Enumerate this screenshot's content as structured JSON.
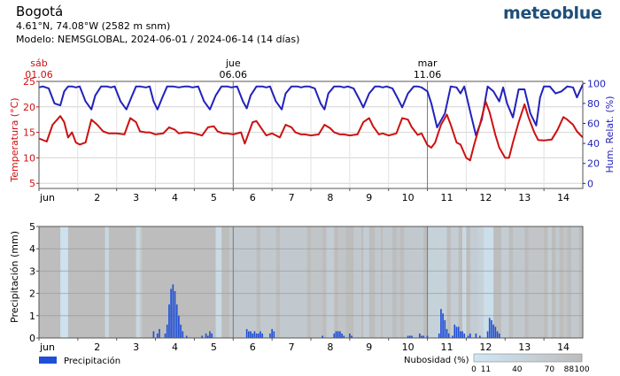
{
  "header": {
    "location": "Bogotá",
    "coordinates": "4.61°N, 74.08°W (2582 m snm)",
    "model": "Modelo: NEMSGLOBAL, 2024-06-01 / 2024-06-14 (14 días)",
    "brand": "meteoblue"
  },
  "colors": {
    "temperature": "#cc1111",
    "humidity": "#2222bb",
    "precipitation": "#1f4fd6",
    "cloud_clear": "#cfe6f5",
    "cloud_overcast": "#bdbdbd"
  },
  "chart_data": [
    {
      "type": "line",
      "day_markers": [
        {
          "day": 1,
          "weekday": "sáb",
          "date": "01.06"
        },
        {
          "day": 6,
          "weekday": "jue",
          "date": "06.06"
        },
        {
          "day": 11,
          "weekday": "mar",
          "date": "11.06"
        }
      ],
      "x_tick_labels": [
        "jun",
        "2",
        "3",
        "4",
        "5",
        "6",
        "7",
        "8",
        "9",
        "10",
        "11",
        "12",
        "13",
        "14"
      ],
      "xlim": [
        1,
        15
      ],
      "y_left": {
        "label": "Temperatura (°C)",
        "ticks": [
          "5",
          "10",
          "15",
          "20",
          "25"
        ],
        "lim": [
          4,
          25
        ]
      },
      "y_right": {
        "label": "Hum. Relat. (%)",
        "ticks": [
          "0",
          "20",
          "40",
          "60",
          "80",
          "100"
        ],
        "lim": [
          -5,
          102
        ]
      },
      "grid": true,
      "series": [
        {
          "axis": "left",
          "x": [
            1.0,
            1.2,
            1.35,
            1.55,
            1.65,
            1.75,
            1.85,
            1.95,
            2.05,
            2.2,
            2.35,
            2.5,
            2.65,
            2.8,
            3.0,
            3.2,
            3.35,
            3.5,
            3.6,
            3.75,
            3.85,
            4.0,
            4.2,
            4.35,
            4.5,
            4.6,
            4.75,
            4.85,
            5.0,
            5.2,
            5.35,
            5.5,
            5.6,
            5.75,
            5.85,
            6.0,
            6.2,
            6.3,
            6.5,
            6.6,
            6.75,
            6.85,
            7.0,
            7.2,
            7.35,
            7.5,
            7.6,
            7.75,
            7.85,
            8.0,
            8.2,
            8.35,
            8.5,
            8.6,
            8.75,
            8.85,
            9.0,
            9.2,
            9.35,
            9.5,
            9.6,
            9.75,
            9.85,
            10.0,
            10.2,
            10.35,
            10.5,
            10.6,
            10.75,
            10.85,
            11.0,
            11.1,
            11.2,
            11.35,
            11.5,
            11.6,
            11.75,
            11.85,
            12.0,
            12.1,
            12.2,
            12.35,
            12.5,
            12.6,
            12.75,
            12.85,
            13.0,
            13.1,
            13.2,
            13.35,
            13.5,
            13.6,
            13.75,
            13.85,
            14.0,
            14.2,
            14.35,
            14.5,
            14.6,
            14.75,
            14.85,
            15.0
          ],
          "values": [
            13.8,
            13.2,
            16.5,
            18.2,
            17.0,
            14.0,
            15.0,
            13.0,
            12.6,
            13.0,
            17.5,
            16.5,
            15.2,
            14.8,
            14.8,
            14.6,
            17.8,
            17.0,
            15.2,
            15.0,
            15.0,
            14.6,
            14.8,
            16.0,
            15.5,
            14.8,
            15.0,
            15.0,
            14.8,
            14.4,
            16.0,
            16.2,
            15.2,
            14.8,
            14.8,
            14.6,
            15.0,
            12.8,
            17.0,
            17.2,
            15.5,
            14.4,
            14.8,
            14.0,
            16.5,
            16.0,
            15.0,
            14.6,
            14.6,
            14.4,
            14.6,
            16.5,
            15.8,
            15.0,
            14.6,
            14.6,
            14.4,
            14.6,
            17.0,
            17.8,
            16.2,
            14.6,
            14.8,
            14.4,
            14.8,
            17.8,
            17.5,
            16.0,
            14.5,
            14.8,
            12.5,
            12.0,
            13.0,
            16.5,
            18.5,
            16.5,
            13.0,
            12.6,
            10.0,
            9.5,
            12.5,
            16.5,
            21.0,
            19.0,
            14.5,
            12.0,
            10.0,
            10.0,
            13.0,
            17.0,
            20.5,
            18.0,
            15.0,
            13.5,
            13.4,
            13.6,
            15.5,
            18.0,
            17.5,
            16.5,
            15.2,
            14.0
          ]
        },
        {
          "axis": "right",
          "x": [
            1.0,
            1.1,
            1.25,
            1.4,
            1.55,
            1.65,
            1.75,
            1.85,
            1.95,
            2.05,
            2.2,
            2.35,
            2.45,
            2.6,
            2.75,
            2.85,
            2.95,
            3.1,
            3.25,
            3.4,
            3.5,
            3.6,
            3.75,
            3.85,
            3.95,
            4.05,
            4.2,
            4.3,
            4.45,
            4.6,
            4.75,
            4.85,
            4.95,
            5.1,
            5.25,
            5.4,
            5.55,
            5.7,
            5.85,
            5.95,
            6.1,
            6.25,
            6.35,
            6.45,
            6.6,
            6.75,
            6.85,
            6.95,
            7.1,
            7.25,
            7.35,
            7.5,
            7.65,
            7.75,
            7.85,
            7.95,
            8.1,
            8.25,
            8.35,
            8.45,
            8.6,
            8.75,
            8.85,
            8.95,
            9.1,
            9.25,
            9.35,
            9.5,
            9.65,
            9.75,
            9.85,
            9.95,
            10.1,
            10.25,
            10.35,
            10.5,
            10.65,
            10.75,
            10.85,
            11.0,
            11.1,
            11.25,
            11.45,
            11.6,
            11.75,
            11.85,
            11.95,
            12.1,
            12.25,
            12.4,
            12.55,
            12.7,
            12.85,
            12.95,
            13.05,
            13.2,
            13.35,
            13.5,
            13.65,
            13.8,
            13.9,
            14.0,
            14.15,
            14.3,
            14.45,
            14.6,
            14.75,
            14.85,
            15.0
          ],
          "values": [
            96,
            97,
            95,
            80,
            78,
            92,
            97,
            97,
            96,
            97,
            82,
            74,
            88,
            97,
            97,
            96,
            97,
            82,
            74,
            88,
            97,
            97,
            96,
            97,
            82,
            74,
            88,
            97,
            97,
            96,
            97,
            97,
            96,
            97,
            82,
            74,
            88,
            97,
            97,
            96,
            97,
            82,
            75,
            88,
            97,
            97,
            96,
            97,
            82,
            74,
            90,
            97,
            97,
            96,
            97,
            97,
            95,
            80,
            74,
            90,
            97,
            97,
            96,
            97,
            95,
            84,
            76,
            90,
            97,
            97,
            96,
            97,
            95,
            84,
            76,
            90,
            97,
            97,
            96,
            92,
            80,
            56,
            70,
            97,
            96,
            90,
            97,
            72,
            48,
            64,
            97,
            92,
            82,
            96,
            80,
            66,
            94,
            94,
            70,
            58,
            86,
            97,
            97,
            90,
            92,
            97,
            96,
            86,
            99
          ]
        }
      ]
    },
    {
      "type": "bar",
      "x_tick_labels": [
        "jun",
        "2",
        "3",
        "4",
        "5",
        "6",
        "7",
        "8",
        "9",
        "10",
        "11",
        "12",
        "13",
        "14"
      ],
      "xlim": [
        1,
        15
      ],
      "y": {
        "label": "Precipitación (mm)",
        "ticks": [
          "0",
          "1",
          "2",
          "3",
          "4",
          "5"
        ],
        "lim": [
          0,
          5
        ]
      },
      "series": [
        {
          "name": "Precipitación",
          "x": [
            3.95,
            4.05,
            4.1,
            4.25,
            4.3,
            4.35,
            4.4,
            4.45,
            4.5,
            4.55,
            4.6,
            4.65,
            4.7,
            4.8,
            5.2,
            5.3,
            5.35,
            5.4,
            5.45,
            6.35,
            6.4,
            6.45,
            6.5,
            6.55,
            6.6,
            6.65,
            6.7,
            6.75,
            6.95,
            7.0,
            7.05,
            8.3,
            8.6,
            8.65,
            8.7,
            8.75,
            8.8,
            8.85,
            9.0,
            9.05,
            10.5,
            10.55,
            10.6,
            10.8,
            10.85,
            10.9,
            11.0,
            11.3,
            11.35,
            11.4,
            11.45,
            11.5,
            11.55,
            11.65,
            11.7,
            11.75,
            11.8,
            11.85,
            11.9,
            11.95,
            12.05,
            12.1,
            12.25,
            12.35,
            12.55,
            12.6,
            12.65,
            12.7,
            12.75,
            12.8,
            12.85
          ],
          "values": [
            0.3,
            0.2,
            0.4,
            0.2,
            0.6,
            1.5,
            2.2,
            2.4,
            2.1,
            1.5,
            1.0,
            0.6,
            0.3,
            0.1,
            0.1,
            0.2,
            0.1,
            0.3,
            0.2,
            0.4,
            0.3,
            0.3,
            0.2,
            0.3,
            0.2,
            0.2,
            0.3,
            0.2,
            0.2,
            0.4,
            0.3,
            0.1,
            0.2,
            0.3,
            0.3,
            0.3,
            0.2,
            0.1,
            0.2,
            0.1,
            0.1,
            0.1,
            0.1,
            0.2,
            0.1,
            0.1,
            0.1,
            0.2,
            1.3,
            1.1,
            0.8,
            0.4,
            0.2,
            0.1,
            0.6,
            0.5,
            0.5,
            0.3,
            0.3,
            0.2,
            0.1,
            0.2,
            0.2,
            0.1,
            0.3,
            0.9,
            0.8,
            0.6,
            0.5,
            0.3,
            0.2
          ]
        }
      ],
      "cloud_cover": {
        "label": "Nubosidad (%)",
        "scale_ticks": [
          "0",
          "11",
          "40",
          "70",
          "88",
          "100"
        ],
        "x": [
          1.0,
          1.55,
          1.75,
          2.7,
          2.8,
          3.5,
          3.6,
          3.6,
          3.65,
          5.5,
          5.55,
          5.7,
          5.9,
          6.6,
          6.7,
          7.1,
          7.2,
          7.9,
          8.0,
          8.3,
          8.4,
          8.6,
          8.7,
          8.9,
          9.1,
          9.3,
          9.35,
          9.5,
          9.65,
          9.8,
          9.85,
          10.1,
          10.2,
          10.3,
          10.4,
          10.9,
          11.0,
          11.5,
          11.6,
          11.8,
          11.9,
          12.0,
          12.1,
          12.3,
          12.45,
          12.7,
          12.9,
          13.1,
          13.2,
          13.5,
          13.6,
          14.0,
          14.1,
          14.2,
          14.3,
          14.4,
          14.5,
          14.6,
          14.7,
          14.9
        ],
        "values": [
          100,
          11,
          100,
          40,
          100,
          40,
          100,
          70,
          100,
          100,
          30,
          100,
          70,
          100,
          70,
          100,
          70,
          100,
          80,
          100,
          60,
          100,
          80,
          100,
          70,
          100,
          60,
          100,
          70,
          100,
          70,
          100,
          80,
          100,
          70,
          100,
          50,
          100,
          60,
          100,
          30,
          100,
          60,
          50,
          20,
          100,
          60,
          100,
          70,
          100,
          80,
          100,
          60,
          100,
          70,
          100,
          80,
          100,
          70,
          100
        ]
      }
    }
  ]
}
